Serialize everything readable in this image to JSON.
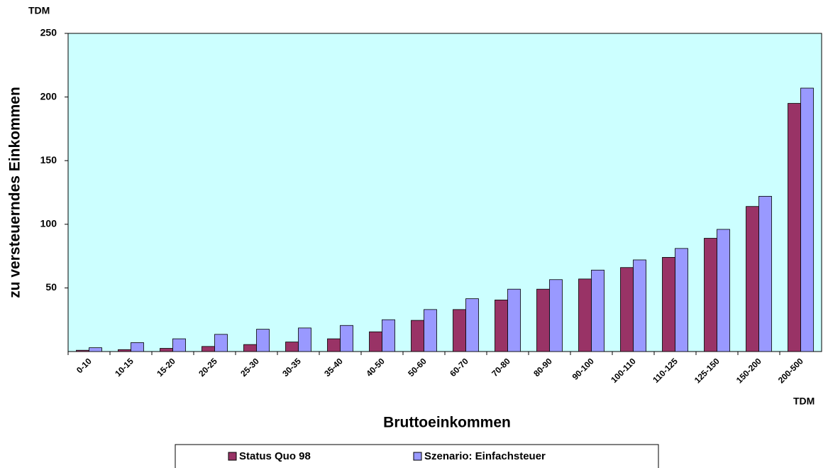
{
  "chart_data": {
    "type": "bar",
    "y_unit": "TDM",
    "x_unit": "TDM",
    "x_label": "Bruttoeinkommen",
    "y_label": "zu versteuerndes Einkommen",
    "categories": [
      "0-10",
      "10-15",
      "15-20",
      "20-25",
      "25-30",
      "30-35",
      "35-40",
      "40-50",
      "50-60",
      "60-70",
      "70-80",
      "80-90",
      "90-100",
      "100-110",
      "110-125",
      "125-150",
      "150-200",
      "200-500"
    ],
    "series": [
      {
        "name": "Status Quo 98",
        "color": "#993366",
        "values": [
          1,
          1.5,
          2.5,
          4,
          5.5,
          7.5,
          10,
          15.5,
          24.5,
          33,
          40.5,
          49,
          57,
          66,
          74,
          89,
          114,
          195
        ]
      },
      {
        "name": "Szenario: Einfachsteuer",
        "color": "#9999ff",
        "values": [
          3,
          7,
          10,
          13.5,
          17.5,
          18.5,
          20.5,
          25,
          33,
          41.5,
          49,
          56.5,
          64,
          72,
          81,
          96,
          122,
          207
        ]
      }
    ],
    "ylim": [
      0,
      250
    ],
    "yticks": [
      50,
      100,
      150,
      200,
      250
    ],
    "plot_background": "#ccffff"
  }
}
